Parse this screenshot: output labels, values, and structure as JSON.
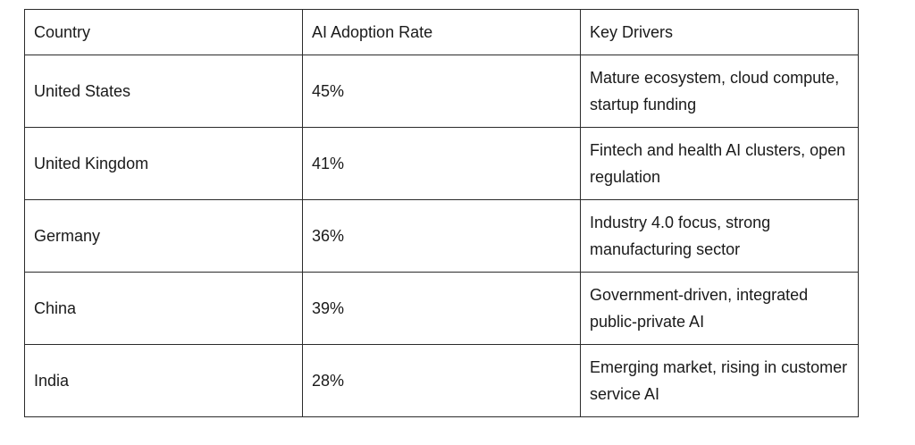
{
  "table": {
    "headers": [
      "Country",
      "AI Adoption Rate",
      "Key Drivers"
    ],
    "rows": [
      [
        "United States",
        "45%",
        "Mature ecosystem, cloud compute, startup funding"
      ],
      [
        "United Kingdom",
        "41%",
        "Fintech and health AI clusters, open regulation"
      ],
      [
        "Germany",
        "36%",
        "Industry 4.0 focus, strong manufacturing sector"
      ],
      [
        "China",
        "39%",
        "Government-driven, integrated public-private AI"
      ],
      [
        "India",
        "28%",
        "Emerging market, rising in customer service AI"
      ]
    ]
  }
}
